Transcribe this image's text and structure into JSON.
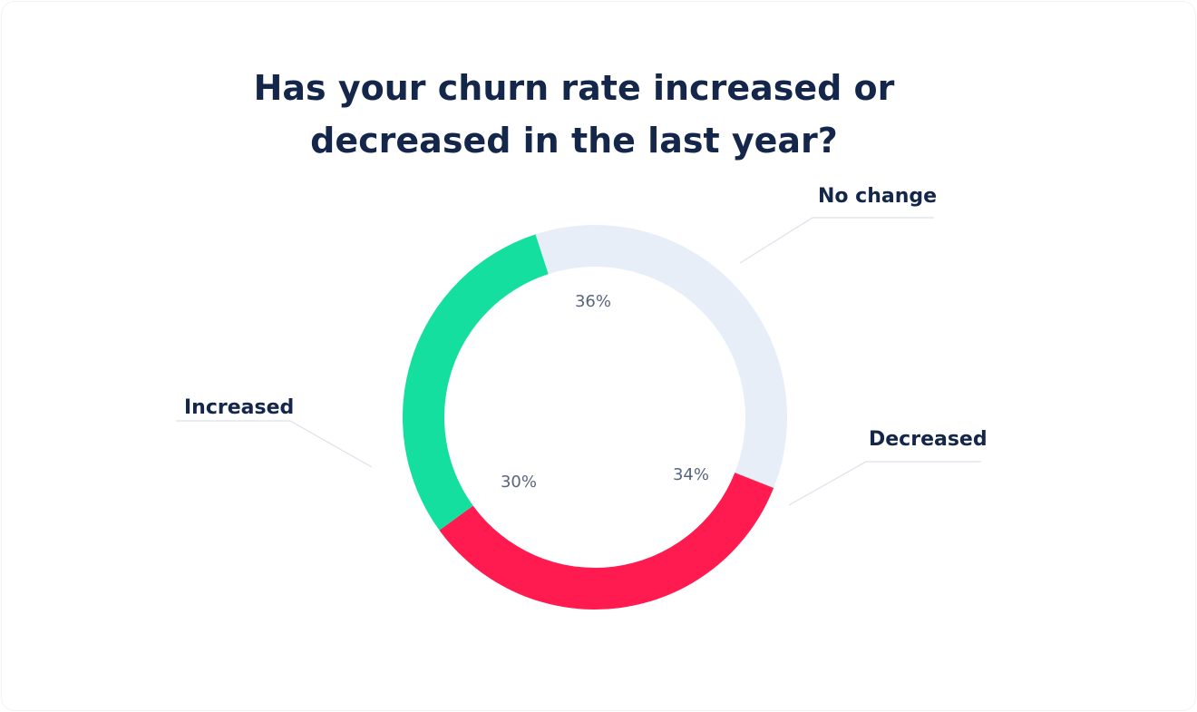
{
  "chart_data": {
    "type": "pie",
    "title": "Has your churn rate increased or decreased in the last year?",
    "title_lines": [
      "Has your churn rate increased or",
      "decreased in the last year?"
    ],
    "labels": [
      "No change",
      "Decreased",
      "Increased"
    ],
    "values": [
      36,
      34,
      30
    ],
    "value_labels": [
      "36%",
      "34%",
      "30%"
    ],
    "colors": [
      "#e8eef8",
      "#ff1a4f",
      "#14df9f"
    ],
    "style": "donut",
    "legend_placement": "callouts"
  }
}
